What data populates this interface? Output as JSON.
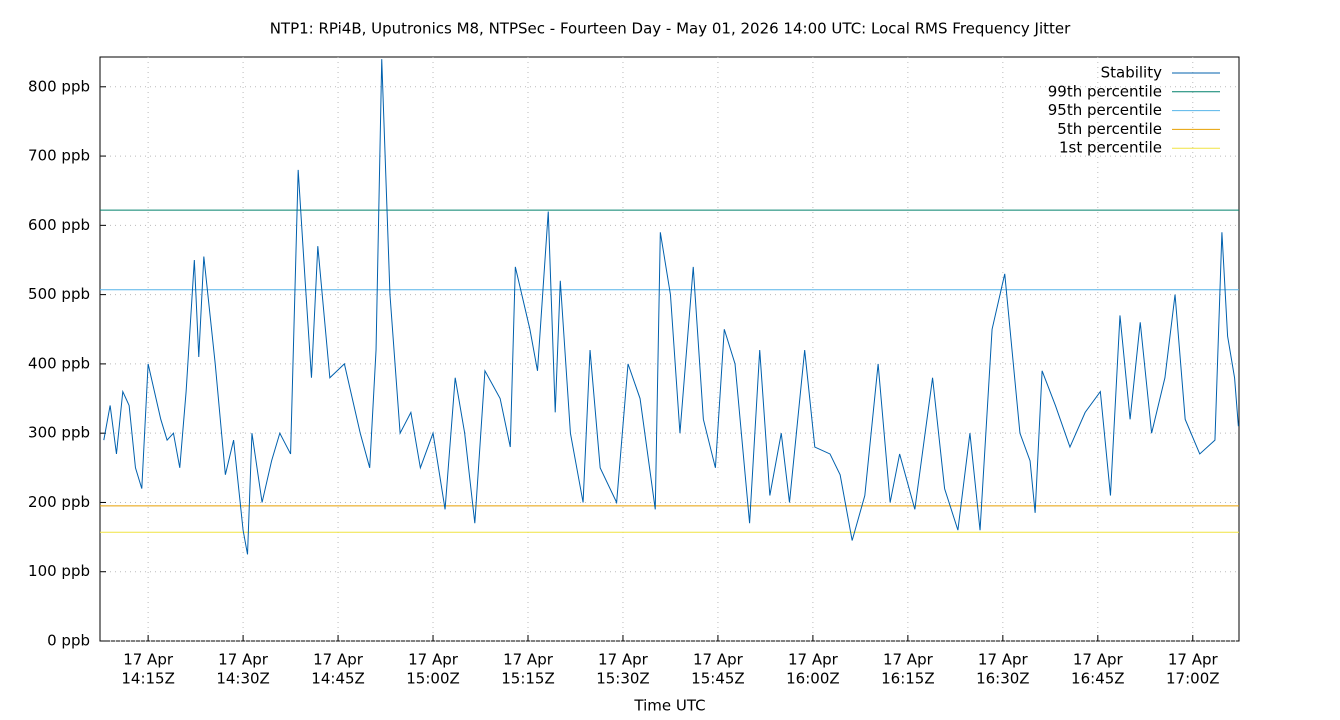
{
  "chart_data": {
    "type": "line",
    "title": "NTP1: RPi4B, Uputronics M8, NTPSec - Fourteen Day - May 01, 2026 14:00 UTC: Local RMS Frequency Jitter",
    "x_label": "Time UTC",
    "xlim": [
      847.4,
      1027.3
    ],
    "xticks": [
      {
        "value": 855,
        "label": [
          "17 Apr",
          "14:15Z"
        ]
      },
      {
        "value": 870,
        "label": [
          "17 Apr",
          "14:30Z"
        ]
      },
      {
        "value": 885,
        "label": [
          "17 Apr",
          "14:45Z"
        ]
      },
      {
        "value": 900,
        "label": [
          "17 Apr",
          "15:00Z"
        ]
      },
      {
        "value": 915,
        "label": [
          "17 Apr",
          "15:15Z"
        ]
      },
      {
        "value": 930,
        "label": [
          "17 Apr",
          "15:30Z"
        ]
      },
      {
        "value": 945,
        "label": [
          "17 Apr",
          "15:45Z"
        ]
      },
      {
        "value": 960,
        "label": [
          "17 Apr",
          "16:00Z"
        ]
      },
      {
        "value": 975,
        "label": [
          "17 Apr",
          "16:15Z"
        ]
      },
      {
        "value": 990,
        "label": [
          "17 Apr",
          "16:30Z"
        ]
      },
      {
        "value": 1005,
        "label": [
          "17 Apr",
          "16:45Z"
        ]
      },
      {
        "value": 1020,
        "label": [
          "17 Apr",
          "17:00Z"
        ]
      }
    ],
    "ylim": [
      0,
      843
    ],
    "yticks": [
      {
        "value": 0,
        "label": "0 ppb"
      },
      {
        "value": 100,
        "label": "100 ppb"
      },
      {
        "value": 200,
        "label": "200 ppb"
      },
      {
        "value": 300,
        "label": "300 ppb"
      },
      {
        "value": 400,
        "label": "400 ppb"
      },
      {
        "value": 500,
        "label": "500 ppb"
      },
      {
        "value": 600,
        "label": "600 ppb"
      },
      {
        "value": 700,
        "label": "700 ppb"
      },
      {
        "value": 800,
        "label": "800 ppb"
      }
    ],
    "grid": true,
    "legend": "top-right",
    "x": [
      848,
      849,
      850,
      851,
      852,
      853,
      854,
      855,
      856,
      857,
      858,
      859,
      860,
      861,
      862.3,
      863,
      863.8,
      865.6,
      867.2,
      868.5,
      870,
      870.7,
      871.4,
      873,
      874.5,
      875.8,
      877.5,
      878.7,
      879.8,
      880.8,
      881.8,
      883.7,
      886,
      888.5,
      890,
      891,
      891.9,
      893.2,
      894.8,
      896.5,
      898,
      900,
      901.9,
      903.5,
      905,
      906.6,
      908.2,
      910.6,
      912.2,
      913,
      915.3,
      916.5,
      918.2,
      919.3,
      920.1,
      921.7,
      923.7,
      924.8,
      926.4,
      929,
      930.8,
      932.7,
      935.1,
      935.9,
      937.5,
      939,
      941.1,
      942.7,
      944.6,
      946,
      947.7,
      950,
      951.6,
      953.2,
      955,
      956.3,
      958.7,
      960.3,
      962.7,
      964.3,
      966.2,
      968.2,
      970.3,
      972.2,
      973.7,
      976.1,
      978.9,
      980.8,
      982.9,
      984.8,
      986.4,
      988.3,
      990.3,
      992.7,
      994.3,
      995.1,
      996.2,
      998.3,
      1000.6,
      1003,
      1005.4,
      1007,
      1008.5,
      1010.1,
      1011.7,
      1013.5,
      1015.6,
      1017.2,
      1018.8,
      1021.1,
      1023.5,
      1024.6,
      1025.5,
      1026.6,
      1027.2
    ],
    "series": [
      {
        "name": "Stability",
        "color": "#0060ad",
        "values": [
          290,
          340,
          270,
          360,
          340,
          250,
          220,
          400,
          360,
          320,
          290,
          300,
          250,
          360,
          550,
          410,
          555,
          400,
          240,
          290,
          160,
          125,
          300,
          200,
          260,
          300,
          270,
          680,
          520,
          380,
          570,
          380,
          400,
          300,
          250,
          420,
          840,
          500,
          300,
          330,
          250,
          300,
          190,
          380,
          300,
          170,
          390,
          350,
          280,
          540,
          450,
          390,
          620,
          330,
          520,
          300,
          200,
          420,
          250,
          200,
          400,
          350,
          190,
          590,
          500,
          300,
          540,
          320,
          250,
          450,
          400,
          170,
          420,
          210,
          300,
          200,
          420,
          280,
          270,
          240,
          145,
          210,
          400,
          200,
          270,
          190,
          380,
          220,
          160,
          300,
          160,
          450,
          530,
          300,
          260,
          185,
          390,
          340,
          280,
          330,
          360,
          210,
          470,
          320,
          460,
          300,
          380,
          500,
          320,
          270,
          290,
          590,
          440,
          380,
          310
        ]
      }
    ],
    "reference_lines": [
      {
        "name": "99th percentile",
        "color": "#00806b",
        "value": 622
      },
      {
        "name": "95th percentile",
        "color": "#56b4e9",
        "value": 507
      },
      {
        "name": "5th percentile",
        "color": "#e69f00",
        "value": 195
      },
      {
        "name": "1st percentile",
        "color": "#f0e442",
        "value": 157
      }
    ]
  }
}
